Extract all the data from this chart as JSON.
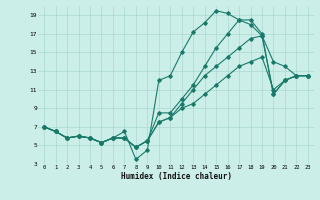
{
  "xlabel": "Humidex (Indice chaleur)",
  "background_color": "#cceee8",
  "grid_color": "#aad8d2",
  "line_color": "#1a7a6a",
  "xlim": [
    -0.5,
    23.5
  ],
  "ylim": [
    3,
    20
  ],
  "xticks": [
    0,
    1,
    2,
    3,
    4,
    5,
    6,
    7,
    8,
    9,
    10,
    11,
    12,
    13,
    14,
    15,
    16,
    17,
    18,
    19,
    20,
    21,
    22,
    23
  ],
  "yticks": [
    3,
    5,
    7,
    9,
    11,
    13,
    15,
    17,
    19
  ],
  "series": [
    {
      "x": [
        0,
        1,
        2,
        3,
        4,
        5,
        6,
        7,
        8,
        9,
        10,
        11,
        12,
        13,
        14,
        15,
        16,
        17,
        18,
        19,
        20,
        21,
        22,
        23
      ],
      "y": [
        7,
        6.5,
        5.8,
        6.0,
        5.8,
        5.3,
        5.8,
        5.8,
        4.8,
        5.5,
        7.5,
        8.0,
        9.0,
        9.5,
        10.5,
        11.5,
        12.5,
        13.5,
        14.0,
        14.5,
        11.0,
        12.0,
        12.5,
        12.5
      ]
    },
    {
      "x": [
        0,
        1,
        2,
        3,
        4,
        5,
        6,
        7,
        8,
        9,
        10,
        11,
        12,
        13,
        14,
        15,
        16,
        17,
        18,
        19,
        20,
        21,
        22,
        23
      ],
      "y": [
        7,
        6.5,
        5.8,
        6.0,
        5.8,
        5.3,
        5.8,
        5.8,
        4.8,
        5.5,
        7.5,
        8.0,
        9.5,
        11.0,
        12.5,
        13.5,
        14.5,
        15.5,
        16.5,
        16.8,
        14.0,
        13.5,
        12.5,
        12.5
      ]
    },
    {
      "x": [
        0,
        1,
        2,
        3,
        4,
        5,
        6,
        7,
        8,
        9,
        10,
        11,
        12,
        13,
        14,
        15,
        16,
        17,
        18,
        19,
        20,
        21,
        22,
        23
      ],
      "y": [
        7,
        6.5,
        5.8,
        6.0,
        5.8,
        5.3,
        5.8,
        5.8,
        4.8,
        5.5,
        8.5,
        8.5,
        10.0,
        11.5,
        13.5,
        15.5,
        17.0,
        18.5,
        18.0,
        16.8,
        10.5,
        12.0,
        12.5,
        12.5
      ]
    },
    {
      "x": [
        0,
        1,
        2,
        3,
        4,
        5,
        6,
        7,
        8,
        9,
        10,
        11,
        12,
        13,
        14,
        15,
        16,
        17,
        18,
        19,
        20,
        21,
        22,
        23
      ],
      "y": [
        7,
        6.5,
        5.8,
        6.0,
        5.8,
        5.3,
        5.8,
        6.5,
        3.5,
        4.5,
        12.0,
        12.5,
        15.0,
        17.2,
        18.2,
        19.5,
        19.2,
        18.5,
        18.5,
        17.0,
        10.5,
        12.0,
        12.5,
        12.5
      ]
    }
  ]
}
